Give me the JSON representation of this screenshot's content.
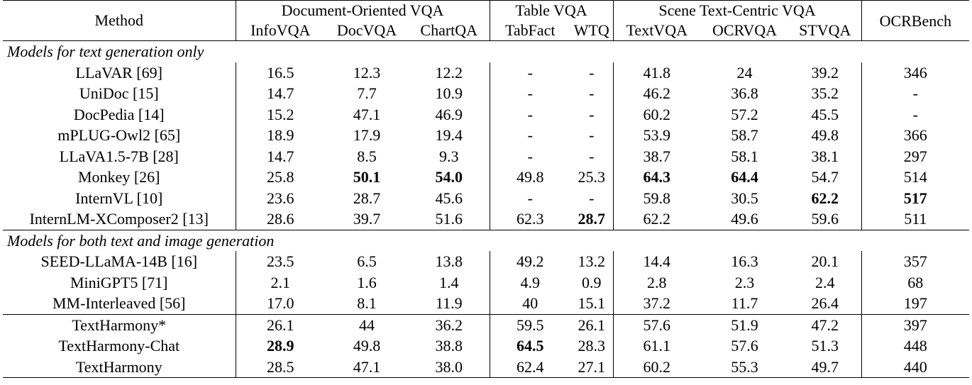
{
  "header": {
    "method": "Method",
    "groups": [
      "Document-Oriented VQA",
      "Table VQA",
      "Scene Text-Centric VQA",
      "OCRBench"
    ],
    "columns": [
      "InfoVQA",
      "DocVQA",
      "ChartQA",
      "TabFact",
      "WTQ",
      "TextVQA",
      "OCRVQA",
      "STVQA"
    ]
  },
  "sections": [
    {
      "title": "Models for text generation only",
      "rows": [
        {
          "method": "LLaVAR [69]",
          "values": [
            "16.5",
            "12.3",
            "12.2",
            "-",
            "-",
            "41.8",
            "24",
            "39.2",
            "346"
          ],
          "bold": []
        },
        {
          "method": "UniDoc [15]",
          "values": [
            "14.7",
            "7.7",
            "10.9",
            "-",
            "-",
            "46.2",
            "36.8",
            "35.2",
            "-"
          ],
          "bold": []
        },
        {
          "method": "DocPedia [14]",
          "values": [
            "15.2",
            "47.1",
            "46.9",
            "-",
            "-",
            "60.2",
            "57.2",
            "45.5",
            "-"
          ],
          "bold": []
        },
        {
          "method": "mPLUG-Owl2 [65]",
          "values": [
            "18.9",
            "17.9",
            "19.4",
            "-",
            "-",
            "53.9",
            "58.7",
            "49.8",
            "366"
          ],
          "bold": []
        },
        {
          "method": "LLaVA1.5-7B [28]",
          "values": [
            "14.7",
            "8.5",
            "9.3",
            "-",
            "-",
            "38.7",
            "58.1",
            "38.1",
            "297"
          ],
          "bold": []
        },
        {
          "method": "Monkey [26]",
          "values": [
            "25.8",
            "50.1",
            "54.0",
            "49.8",
            "25.3",
            "64.3",
            "64.4",
            "54.7",
            "514"
          ],
          "bold": [
            1,
            2,
            5,
            6
          ]
        },
        {
          "method": "InternVL [10]",
          "values": [
            "23.6",
            "28.7",
            "45.6",
            "-",
            "-",
            "59.8",
            "30.5",
            "62.2",
            "517"
          ],
          "bold": [
            7,
            8
          ]
        },
        {
          "method": "InternLM-XComposer2 [13]",
          "values": [
            "28.6",
            "39.7",
            "51.6",
            "62.3",
            "28.7",
            "62.2",
            "49.6",
            "59.6",
            "511"
          ],
          "bold": [
            4
          ]
        }
      ]
    },
    {
      "title": "Models for both text and image generation",
      "rows": [
        {
          "method": "SEED-LLaMA-14B [16]",
          "values": [
            "23.5",
            "6.5",
            "13.8",
            "49.2",
            "13.2",
            "14.4",
            "16.3",
            "20.1",
            "357"
          ],
          "bold": []
        },
        {
          "method": "MiniGPT5 [71]",
          "values": [
            "2.1",
            "1.6",
            "1.4",
            "4.9",
            "0.9",
            "2.8",
            "2.3",
            "2.4",
            "68"
          ],
          "bold": []
        },
        {
          "method": "MM-Interleaved [56]",
          "values": [
            "17.0",
            "8.1",
            "11.9",
            "40",
            "15.1",
            "37.2",
            "11.7",
            "26.4",
            "197"
          ],
          "bold": []
        }
      ]
    },
    {
      "title": "",
      "rows": [
        {
          "method": "TextHarmony*",
          "values": [
            "26.1",
            "44",
            "36.2",
            "59.5",
            "26.1",
            "57.6",
            "51.9",
            "47.2",
            "397"
          ],
          "bold": []
        },
        {
          "method": "TextHarmony-Chat",
          "values": [
            "28.9",
            "49.8",
            "38.8",
            "64.5",
            "28.3",
            "61.1",
            "57.6",
            "51.3",
            "448"
          ],
          "bold": [
            0,
            3
          ]
        },
        {
          "method": "TextHarmony",
          "values": [
            "28.5",
            "47.1",
            "38.0",
            "62.4",
            "27.1",
            "60.2",
            "55.3",
            "49.7",
            "440"
          ],
          "bold": []
        }
      ]
    }
  ]
}
